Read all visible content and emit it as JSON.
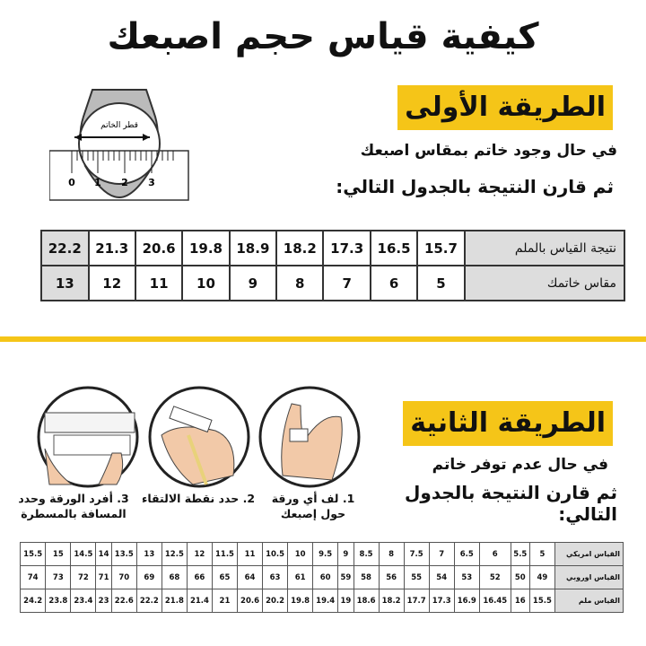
{
  "title": "كيفية قياس حجم اصبعك",
  "method1": {
    "label": "الطريقة الأولى",
    "line1": "في حال وجود خاتم بمقاس اصبعك",
    "line2": "ثم قارن النتيجة بالجدول التالي:",
    "ring_label": "قطر الخاتم",
    "ruler_ticks": [
      "0",
      "1",
      "2",
      "3"
    ],
    "table": {
      "row_headers": [
        "نتيجة القياس بالملم",
        "مقاس خاتمك"
      ],
      "mm": [
        "15.7",
        "16.5",
        "17.3",
        "18.2",
        "18.9",
        "19.8",
        "20.6",
        "21.3",
        "22.2"
      ],
      "size": [
        "5",
        "6",
        "7",
        "8",
        "9",
        "10",
        "11",
        "12",
        "13"
      ]
    }
  },
  "method2": {
    "label": "الطريقة الثانية",
    "line1": "في حال عدم توفر خاتم",
    "line2": "ثم قارن النتيجة بالجدول التالي:",
    "steps": [
      "1. لف أي ورقة حول إصبعك",
      "2. حدد نقطة الالتقاء",
      "3. أفرد الورقة وحدد المسافة بالمسطرة"
    ],
    "table": {
      "row_headers": [
        "القياس امريكي",
        "القياس اوروبي",
        "القياس ملم"
      ],
      "us": [
        "5",
        "5.5",
        "6",
        "6.5",
        "7",
        "7.5",
        "8",
        "8.5",
        "9",
        "9.5",
        "10",
        "10.5",
        "11",
        "11.5",
        "12",
        "12.5",
        "13",
        "13.5",
        "14",
        "14.5",
        "15",
        "15.5"
      ],
      "eu": [
        "49",
        "50",
        "52",
        "53",
        "54",
        "55",
        "56",
        "58",
        "59",
        "60",
        "61",
        "63",
        "64",
        "65",
        "66",
        "68",
        "69",
        "70",
        "71",
        "72",
        "73",
        "74"
      ],
      "mm": [
        "15.5",
        "16",
        "16.45",
        "16.9",
        "17.3",
        "17.7",
        "18.2",
        "18.6",
        "19",
        "19.4",
        "19.8",
        "20.2",
        "20.6",
        "21",
        "21.4",
        "21.8",
        "22.2",
        "22.6",
        "23",
        "23.4",
        "23.8",
        "24.2"
      ]
    }
  },
  "colors": {
    "accent": "#f5c518",
    "header_cell": "#dddddd"
  }
}
